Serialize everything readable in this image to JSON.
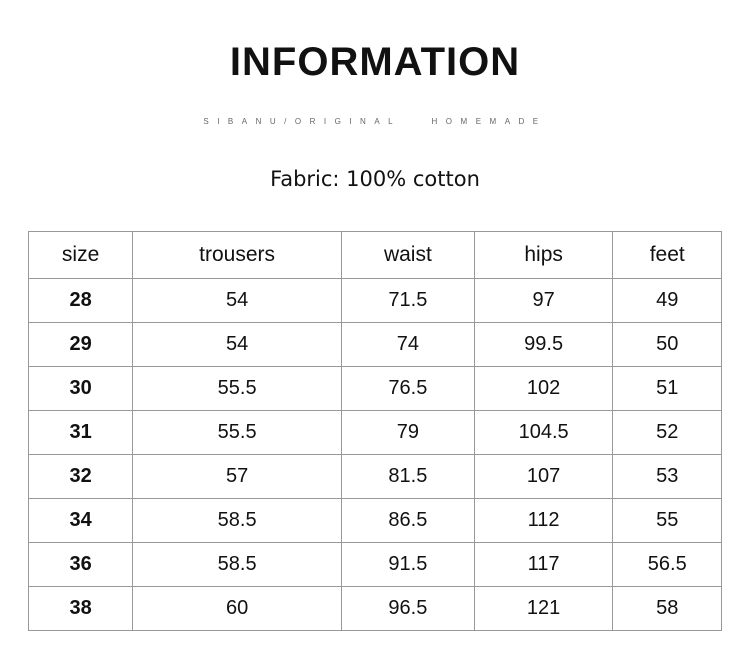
{
  "title": "INFORMATION",
  "subtitle": "SIBANU/ORIGINAL HOMEMADE",
  "fabric": "Fabric: 100% cotton",
  "table": {
    "headers": [
      "size",
      "trousers",
      "waist",
      "hips",
      "feet"
    ],
    "rows": [
      [
        "28",
        "54",
        "71.5",
        "97",
        "49"
      ],
      [
        "29",
        "54",
        "74",
        "99.5",
        "50"
      ],
      [
        "30",
        "55.5",
        "76.5",
        "102",
        "51"
      ],
      [
        "31",
        "55.5",
        "79",
        "104.5",
        "52"
      ],
      [
        "32",
        "57",
        "81.5",
        "107",
        "53"
      ],
      [
        "34",
        "58.5",
        "86.5",
        "112",
        "55"
      ],
      [
        "36",
        "58.5",
        "91.5",
        "117",
        "56.5"
      ],
      [
        "38",
        "60",
        "96.5",
        "121",
        "58"
      ]
    ]
  }
}
